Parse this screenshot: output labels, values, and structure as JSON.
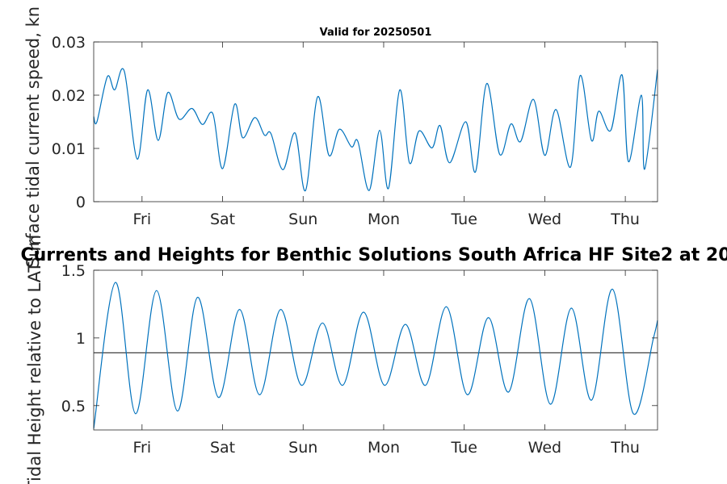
{
  "colors": {
    "series": "#0072BD",
    "axis": "#262626",
    "reference": "#404040"
  },
  "chart_data": [
    {
      "type": "line",
      "title": "Valid for 20250501",
      "ylabel": "Surface tidal current speed, kn",
      "xlim": [
        0,
        7
      ],
      "ylim": [
        0,
        0.03
      ],
      "yticks": [
        0,
        0.01,
        0.02,
        0.03
      ],
      "ytick_labels": [
        "0",
        "0.01",
        "0.02",
        "0.03"
      ],
      "xticks": [
        0.6,
        1.6,
        2.6,
        3.6,
        4.6,
        5.6,
        6.6
      ],
      "xtick_labels": [
        "Fri",
        "Sat",
        "Sun",
        "Mon",
        "Tue",
        "Wed",
        "Thu"
      ],
      "grid": false,
      "series": [
        {
          "x": [
            0,
            0.04,
            0.17,
            0.26,
            0.38,
            0.54,
            0.67,
            0.8,
            0.92,
            1.06,
            1.22,
            1.35,
            1.48,
            1.6,
            1.75,
            1.85,
            2.0,
            2.12,
            2.2,
            2.35,
            2.5,
            2.63,
            2.78,
            2.92,
            3.05,
            3.2,
            3.28,
            3.42,
            3.55,
            3.66,
            3.8,
            3.92,
            4.04,
            4.2,
            4.3,
            4.42,
            4.62,
            4.74,
            4.88,
            5.04,
            5.18,
            5.3,
            5.46,
            5.6,
            5.74,
            5.92,
            6.04,
            6.18,
            6.27,
            6.42,
            6.56,
            6.64,
            6.8,
            6.84,
            7.0
          ],
          "y": [
            0.016,
            0.015,
            0.0235,
            0.021,
            0.0245,
            0.008,
            0.021,
            0.0115,
            0.0205,
            0.0155,
            0.0175,
            0.0145,
            0.0165,
            0.0062,
            0.0183,
            0.012,
            0.0158,
            0.0125,
            0.0128,
            0.006,
            0.0129,
            0.0021,
            0.0197,
            0.0087,
            0.0136,
            0.0103,
            0.0113,
            0.0021,
            0.0134,
            0.0025,
            0.021,
            0.0073,
            0.0133,
            0.0101,
            0.0143,
            0.0073,
            0.015,
            0.0056,
            0.0222,
            0.0089,
            0.0146,
            0.0113,
            0.0192,
            0.0087,
            0.0173,
            0.0065,
            0.0237,
            0.0115,
            0.017,
            0.0134,
            0.0238,
            0.0075,
            0.02,
            0.0061,
            0.0248
          ]
        }
      ]
    },
    {
      "type": "line",
      "title": "Currents and Heights for Benthic Solutions South Africa HF Site2 at 20",
      "ylabel": "Tidal Height relative to LAT, m",
      "xlim": [
        0,
        7
      ],
      "ylim": [
        0.32,
        1.5
      ],
      "yticks": [
        0.5,
        1,
        1.5
      ],
      "ytick_labels": [
        "0.5",
        "1",
        "1.5"
      ],
      "xticks": [
        0.6,
        1.6,
        2.6,
        3.6,
        4.6,
        5.6,
        6.6
      ],
      "xtick_labels": [
        "Fri",
        "Sat",
        "Sun",
        "Mon",
        "Tue",
        "Wed",
        "Thu"
      ],
      "grid": false,
      "reference_y": 0.89,
      "series": [
        {
          "x": [
            0,
            0.27,
            0.52,
            0.78,
            1.04,
            1.29,
            1.55,
            1.81,
            2.06,
            2.32,
            2.58,
            2.84,
            3.09,
            3.35,
            3.61,
            3.87,
            4.12,
            4.38,
            4.64,
            4.9,
            5.15,
            5.41,
            5.67,
            5.93,
            6.18,
            6.44,
            6.7,
            6.95,
            7.0
          ],
          "y": [
            0.33,
            1.41,
            0.44,
            1.35,
            0.46,
            1.3,
            0.56,
            1.21,
            0.58,
            1.21,
            0.65,
            1.11,
            0.65,
            1.19,
            0.65,
            1.1,
            0.65,
            1.23,
            0.58,
            1.15,
            0.6,
            1.29,
            0.51,
            1.22,
            0.54,
            1.36,
            0.44,
            1.0,
            1.13
          ]
        }
      ]
    }
  ]
}
